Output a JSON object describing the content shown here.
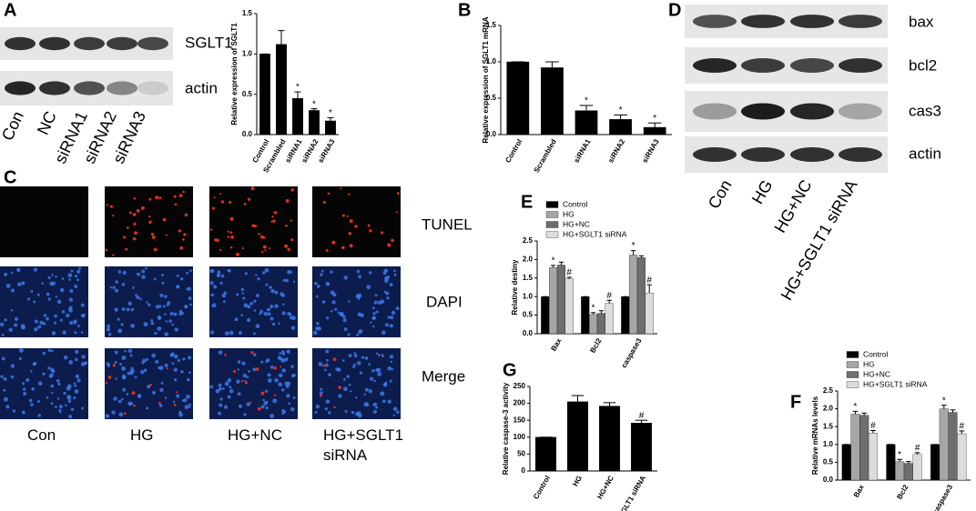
{
  "panel_labels": {
    "a": "A",
    "b": "B",
    "c": "C",
    "d": "D",
    "e": "E",
    "f": "F",
    "g": "G"
  },
  "blot_a": {
    "rows": [
      "SGLT1",
      "actin"
    ],
    "lanes": [
      "Con",
      "NC",
      "siRNA1",
      "siRNA2",
      "siRNA3"
    ]
  },
  "blot_d": {
    "rows": [
      "bax",
      "bcl2",
      "cas3",
      "actin"
    ],
    "lanes": [
      "Con",
      "HG",
      "HG+NC",
      "HG+SGLT1 siRNA"
    ]
  },
  "microscopy": {
    "rows": [
      "TUNEL",
      "DAPI",
      "Merge"
    ],
    "columns": [
      "Con",
      "HG",
      "HG+NC",
      "HG+SGLT1 siRNA"
    ]
  },
  "chart_data": [
    {
      "type": "bar",
      "ylabel": "Relative expression of SGLT1",
      "categories": [
        "Control",
        "Scrambled",
        "siRNA1",
        "siRNA2",
        "siRNA3"
      ],
      "values": [
        1.0,
        1.12,
        0.45,
        0.3,
        0.17
      ],
      "errors": [
        0,
        0.17,
        0.08,
        0.02,
        0.04
      ],
      "annotations": [
        null,
        null,
        "*",
        "*",
        "*"
      ],
      "color": "#000000",
      "ylim": [
        0,
        1.5
      ],
      "yticks": [
        {
          "value": 0,
          "label": "0.0"
        },
        0.5,
        {
          "value": 1,
          "label": "1.0"
        },
        1.5
      ]
    },
    {
      "type": "bar",
      "ylabel": "Relative expression of SGLT1 mRNA",
      "categories": [
        "Control",
        "Scrambled",
        "siRNA1",
        "siRNA2",
        "siRNA3"
      ],
      "values": [
        1.0,
        0.92,
        0.33,
        0.21,
        0.1
      ],
      "errors": [
        0,
        0.08,
        0.07,
        0.06,
        0.06
      ],
      "annotations": [
        null,
        null,
        "*",
        "*",
        "*"
      ],
      "color": "#000000",
      "ylim": [
        0,
        1.5
      ],
      "yticks": [
        {
          "value": 0,
          "label": "0.0"
        },
        0.5,
        {
          "value": 1,
          "label": "1.0"
        },
        1.5
      ]
    },
    {
      "type": "grouped_bar",
      "ylabel": "Relative destiny",
      "legend": "top",
      "categories": [
        "Bax",
        "Bcl2",
        "caspase3"
      ],
      "series": [
        {
          "name": "Control",
          "color": "#000000",
          "values": [
            1,
            1,
            1
          ],
          "errors": [
            0,
            0,
            0
          ]
        },
        {
          "name": "HG",
          "color": "#a6a6a6",
          "values": [
            1.78,
            0.52,
            2.12
          ],
          "errors": [
            0.06,
            0.05,
            0.12
          ],
          "annotations": [
            "*",
            "*",
            "*"
          ]
        },
        {
          "name": "HG+NC",
          "color": "#6e6e6e",
          "values": [
            1.85,
            0.55,
            2.05
          ],
          "errors": [
            0.08,
            0.07,
            0.05
          ]
        },
        {
          "name": "HG+SGLT1 siRNA",
          "color": "#dcdcdc",
          "values": [
            1.48,
            0.82,
            1.1
          ],
          "errors": [
            0.04,
            0.08,
            0.22
          ],
          "annotations": [
            "#",
            "#",
            "#"
          ]
        }
      ],
      "ylim": [
        0,
        2.5
      ],
      "yticks": [
        {
          "value": 0,
          "label": "0.0"
        },
        0.5,
        {
          "value": 1,
          "label": "1.0"
        },
        1.5,
        {
          "value": 2,
          "label": "2.0"
        },
        2.5
      ]
    },
    {
      "type": "bar",
      "ylabel": "Relative caspase-3 activity",
      "categories": [
        "Control",
        "HG",
        "HG+NC",
        "HG+SGLT1 siRNA"
      ],
      "values": [
        100,
        205,
        192,
        142
      ],
      "errors": [
        0,
        18,
        10,
        8
      ],
      "annotations": [
        null,
        null,
        null,
        "#"
      ],
      "color": "#000000",
      "ylim": [
        0,
        250
      ],
      "yticks": [
        0,
        50,
        100,
        150,
        200,
        250
      ]
    },
    {
      "type": "grouped_bar",
      "ylabel": "Relative mRNAs levels",
      "legend": "top",
      "categories": [
        "Bax",
        "Bcl2",
        "caspase3"
      ],
      "series": [
        {
          "name": "Control",
          "color": "#000000",
          "values": [
            1,
            1,
            1
          ],
          "errors": [
            0,
            0,
            0
          ]
        },
        {
          "name": "HG",
          "color": "#a6a6a6",
          "values": [
            1.85,
            0.52,
            2.0
          ],
          "errors": [
            0.08,
            0.06,
            0.1
          ],
          "annotations": [
            "*",
            "*",
            "*"
          ]
        },
        {
          "name": "HG+NC",
          "color": "#6e6e6e",
          "values": [
            1.82,
            0.47,
            1.9
          ],
          "errors": [
            0.06,
            0.05,
            0.07
          ]
        },
        {
          "name": "HG+SGLT1 siRNA",
          "color": "#dcdcdc",
          "values": [
            1.32,
            0.72,
            1.3
          ],
          "errors": [
            0.07,
            0.05,
            0.08
          ],
          "annotations": [
            "#",
            "#",
            "#"
          ]
        }
      ],
      "ylim": [
        0,
        2.5
      ],
      "yticks": [
        {
          "value": 0,
          "label": "0.0"
        },
        0.5,
        {
          "value": 1,
          "label": "1.0"
        },
        1.5,
        {
          "value": 2,
          "label": "2.0"
        },
        2.5
      ]
    }
  ]
}
